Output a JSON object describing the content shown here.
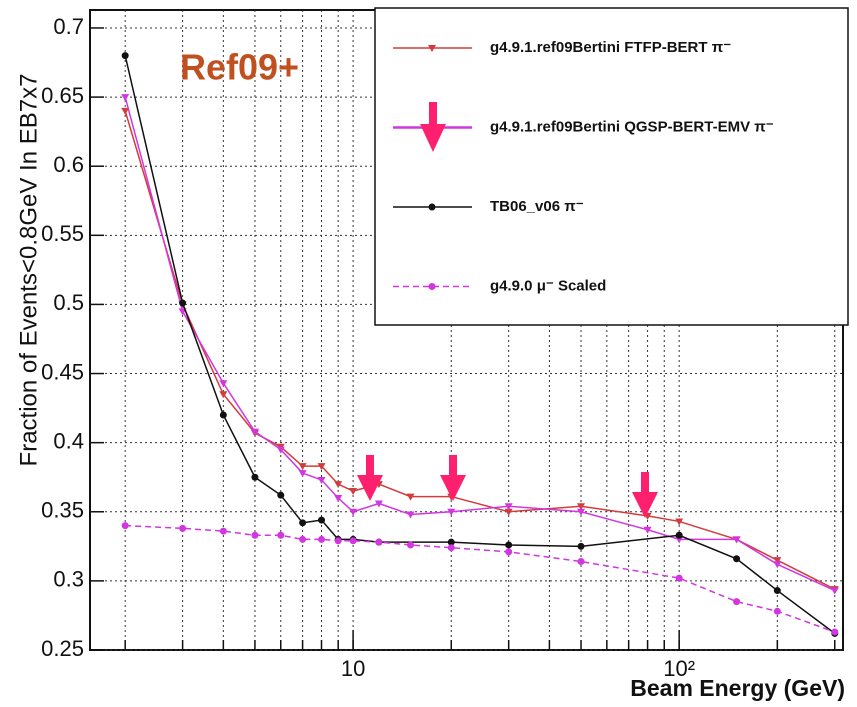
{
  "chart_data": {
    "type": "line",
    "title": "Ref09+",
    "xlabel": "Beam Energy (GeV)",
    "ylabel": "Fraction of Events<0.8GeV In EB7x7",
    "xlog": true,
    "xlim": [
      1.56,
      318
    ],
    "ylim": [
      0.25,
      0.713
    ],
    "xticks": [
      10,
      {
        "value": 100,
        "label": "10²"
      }
    ],
    "xgrid": [
      2,
      3,
      4,
      5,
      6,
      7,
      8,
      9,
      10,
      20,
      30,
      40,
      50,
      60,
      70,
      80,
      90,
      100,
      200,
      300
    ],
    "yticks": [
      0.25,
      0.3,
      0.35,
      0.4,
      0.45,
      0.5,
      0.55,
      0.6,
      0.65,
      0.7
    ],
    "grid": true,
    "legend": "upper right",
    "series": [
      {
        "name": "g4.9.1.ref09Bertini FTFP-BERT π⁻",
        "color": "#d23c3c",
        "marker": "triangle-down",
        "dash": false,
        "x": [
          2,
          3,
          4,
          5,
          6,
          7,
          8,
          9,
          10,
          12,
          15,
          20,
          30,
          50,
          80,
          100,
          150,
          200,
          300
        ],
        "values": [
          0.64,
          0.5,
          0.435,
          0.407,
          0.397,
          0.383,
          0.383,
          0.37,
          0.365,
          0.37,
          0.361,
          0.361,
          0.35,
          0.354,
          0.347,
          0.343,
          0.33,
          0.315,
          0.294
        ]
      },
      {
        "name": "g4.9.1.ref09Bertini QGSP-BERT-EMV π⁻",
        "color": "#d236e0",
        "marker": "triangle-down",
        "dash": false,
        "x": [
          2,
          3,
          4,
          5,
          6,
          7,
          8,
          9,
          10,
          12,
          15,
          20,
          30,
          50,
          80,
          100,
          150,
          200,
          300
        ],
        "values": [
          0.65,
          0.495,
          0.443,
          0.408,
          0.395,
          0.378,
          0.373,
          0.36,
          0.35,
          0.356,
          0.348,
          0.35,
          0.354,
          0.35,
          0.337,
          0.33,
          0.33,
          0.312,
          0.293
        ]
      },
      {
        "name": "TB06_v06 π⁻",
        "color": "#111111",
        "marker": "circle",
        "dash": false,
        "x": [
          2,
          3,
          4,
          5,
          6,
          7,
          8,
          9,
          10,
          12,
          20,
          30,
          50,
          100,
          150,
          200,
          300
        ],
        "values": [
          0.68,
          0.501,
          0.42,
          0.375,
          0.362,
          0.342,
          0.344,
          0.33,
          0.33,
          0.328,
          0.328,
          0.326,
          0.325,
          0.333,
          0.316,
          0.293,
          0.262
        ]
      },
      {
        "name": "g4.9.0 μ⁻ Scaled",
        "color": "#d236e0",
        "marker": "circle",
        "dash": true,
        "x": [
          2,
          3,
          4,
          5,
          6,
          7,
          8,
          9,
          10,
          12,
          15,
          20,
          30,
          50,
          100,
          150,
          200,
          300
        ],
        "values": [
          0.34,
          0.338,
          0.336,
          0.333,
          0.333,
          0.33,
          0.33,
          0.329,
          0.329,
          0.328,
          0.326,
          0.324,
          0.321,
          0.314,
          0.302,
          0.285,
          0.278,
          0.263
        ]
      }
    ]
  }
}
